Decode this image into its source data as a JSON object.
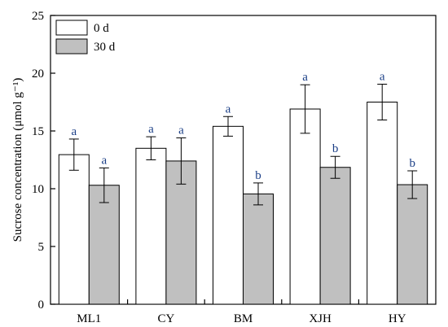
{
  "chart_data": {
    "type": "bar",
    "categories": [
      "ML1",
      "CY",
      "BM",
      "XJH",
      "HY"
    ],
    "series": [
      {
        "name": "0 d",
        "color": "#ffffff",
        "values": [
          12.95,
          13.5,
          15.4,
          16.9,
          17.5
        ],
        "errors": [
          1.35,
          1.0,
          0.85,
          2.1,
          1.55
        ],
        "significance": [
          "a",
          "a",
          "a",
          "a",
          "a"
        ]
      },
      {
        "name": "30 d",
        "color": "#c0c0c0",
        "values": [
          10.3,
          12.4,
          9.55,
          11.85,
          10.35
        ],
        "errors": [
          1.5,
          2.0,
          0.95,
          0.95,
          1.2
        ],
        "significance": [
          "a",
          "a",
          "b",
          "b",
          "b"
        ]
      }
    ],
    "ylabel": "Sucrose concentration (μmol g⁻¹)",
    "ylim": [
      0,
      25
    ],
    "yticks": [
      0,
      5,
      10,
      15,
      20,
      25
    ],
    "xlabel": "",
    "legend_position": "top-left",
    "grid": false
  }
}
